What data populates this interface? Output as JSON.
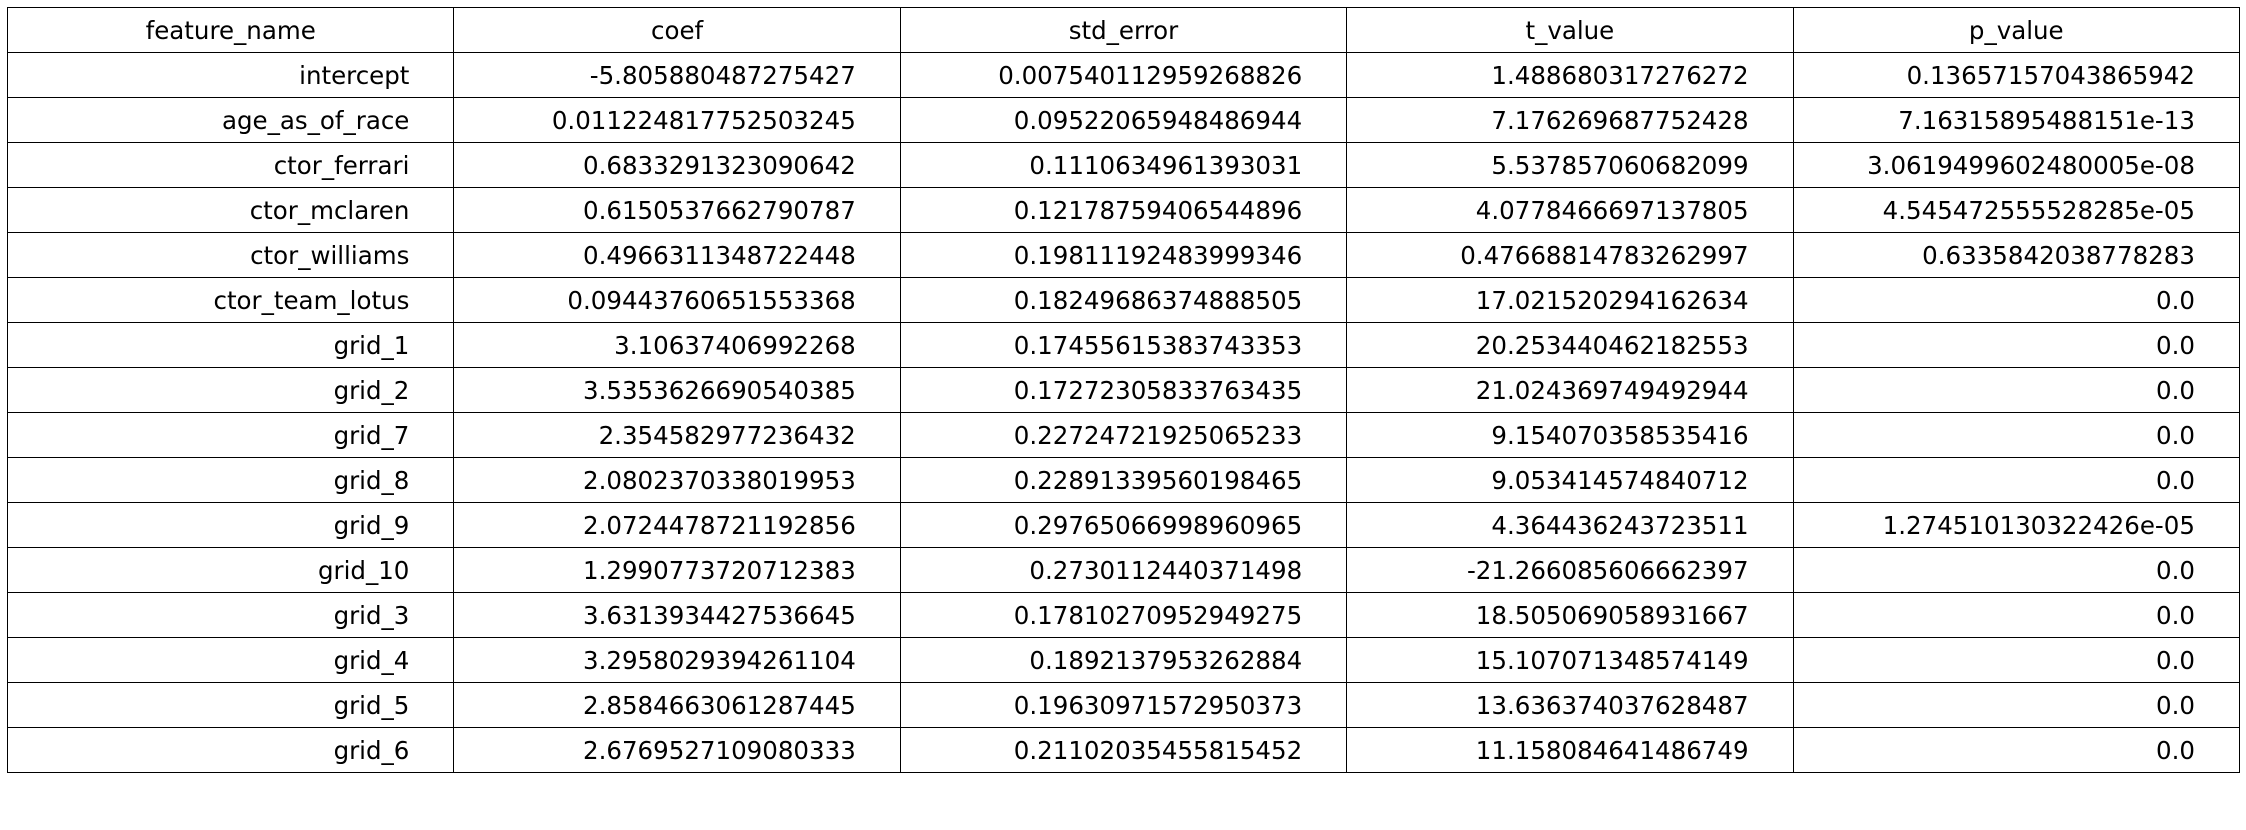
{
  "chart_data": {
    "type": "table",
    "columns": [
      "feature_name",
      "coef",
      "std_error",
      "t_value",
      "p_value"
    ],
    "rows": [
      [
        "intercept",
        "-5.805880487275427",
        "0.007540112959268826",
        "1.488680317276272",
        "0.13657157043865942"
      ],
      [
        "age_as_of_race",
        "0.011224817752503245",
        "0.09522065948486944",
        "7.176269687752428",
        "7.16315895488151e-13"
      ],
      [
        "ctor_ferrari",
        "0.6833291323090642",
        "0.1110634961393031",
        "5.537857060682099",
        "3.0619499602480005e-08"
      ],
      [
        "ctor_mclaren",
        "0.6150537662790787",
        "0.12178759406544896",
        "4.0778466697137805",
        "4.545472555528285e-05"
      ],
      [
        "ctor_williams",
        "0.4966311348722448",
        "0.19811192483999346",
        "0.47668814783262997",
        "0.6335842038778283"
      ],
      [
        "ctor_team_lotus",
        "0.09443760651553368",
        "0.18249686374888505",
        "17.021520294162634",
        "0.0"
      ],
      [
        "grid_1",
        "3.10637406992268",
        "0.17455615383743353",
        "20.253440462182553",
        "0.0"
      ],
      [
        "grid_2",
        "3.5353626690540385",
        "0.17272305833763435",
        "21.024369749492944",
        "0.0"
      ],
      [
        "grid_7",
        "2.354582977236432",
        "0.22724721925065233",
        "9.154070358535416",
        "0.0"
      ],
      [
        "grid_8",
        "2.0802370338019953",
        "0.22891339560198465",
        "9.053414574840712",
        "0.0"
      ],
      [
        "grid_9",
        "2.0724478721192856",
        "0.29765066998960965",
        "4.364436243723511",
        "1.274510130322426e-05"
      ],
      [
        "grid_10",
        "1.2990773720712383",
        "0.2730112440371498",
        "-21.266085606662397",
        "0.0"
      ],
      [
        "grid_3",
        "3.6313934427536645",
        "0.17810270952949275",
        "18.505069058931667",
        "0.0"
      ],
      [
        "grid_4",
        "3.2958029394261104",
        "0.1892137953262884",
        "15.107071348574149",
        "0.0"
      ],
      [
        "grid_5",
        "2.8584663061287445",
        "0.19630971572950373",
        "13.636374037628487",
        "0.0"
      ],
      [
        "grid_6",
        "2.6769527109080333",
        "0.21102035455815452",
        "11.158084641486749",
        "0.0"
      ]
    ]
  }
}
